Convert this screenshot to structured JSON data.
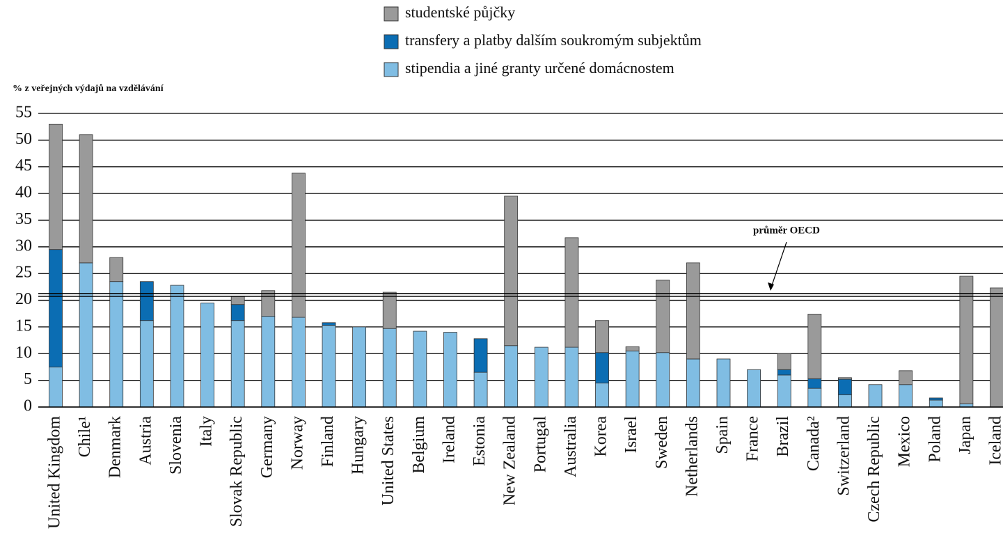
{
  "chart_data": {
    "type": "stacked_bar",
    "y_label": "% z veřejných výdajů na vzdělávání",
    "categories": [
      "United Kingdom",
      "Chile¹",
      "Denmark",
      "Austria",
      "Slovenia",
      "Italy",
      "Slovak Republic",
      "Germany",
      "Norway",
      "Finland",
      "Hungary",
      "United States",
      "Belgium",
      "Ireland",
      "Estonia",
      "New Zealand",
      "Portugal",
      "Australia",
      "Korea",
      "Israel",
      "Sweden",
      "Netherlands",
      "Spain",
      "France",
      "Brazil",
      "Canada²",
      "Switzerland",
      "Czech Republic",
      "Mexico",
      "Poland",
      "Japan",
      "Iceland"
    ],
    "series": [
      {
        "name": "studentské půjčky",
        "color": "#9a9a9a",
        "values": [
          23.5,
          24,
          4.5,
          0,
          0,
          0,
          1.5,
          4.8,
          27,
          0,
          0,
          6.8,
          0,
          0,
          0,
          28,
          0,
          20.5,
          6,
          0.8,
          13.6,
          18,
          0,
          0,
          3,
          12.1,
          0.3,
          0,
          2.6,
          0,
          23.9,
          22.3
        ]
      },
      {
        "name": "transfery a platby dalším soukromým subjektům",
        "color": "#0b6db3",
        "values": [
          22,
          0,
          0,
          7.3,
          0,
          0,
          3,
          0,
          0,
          0.5,
          0,
          0,
          0,
          0,
          6.3,
          0,
          0,
          0,
          5.7,
          0,
          0,
          0,
          0,
          0,
          1,
          1.8,
          2.9,
          0,
          0,
          0.4,
          0,
          0
        ]
      },
      {
        "name": "stipendia a jiné granty určené domácnostem",
        "color": "#80bde3",
        "values": [
          7.5,
          27,
          23.5,
          16.2,
          22.8,
          19.5,
          16.2,
          17,
          16.8,
          15.3,
          15,
          14.7,
          14.2,
          14,
          6.5,
          11.5,
          11.2,
          11.2,
          4.5,
          10.5,
          10.2,
          9,
          9,
          7,
          6,
          3.5,
          2.3,
          4.2,
          4.2,
          1.3,
          0.6,
          0
        ]
      }
    ],
    "reference_lines": [
      {
        "value": 21,
        "label": "průměr OECD"
      }
    ],
    "ylim": [
      0,
      55
    ],
    "yticks": [
      0,
      5,
      10,
      15,
      20,
      25,
      30,
      35,
      40,
      45,
      50,
      55
    ],
    "grid": true,
    "legend": "top"
  }
}
